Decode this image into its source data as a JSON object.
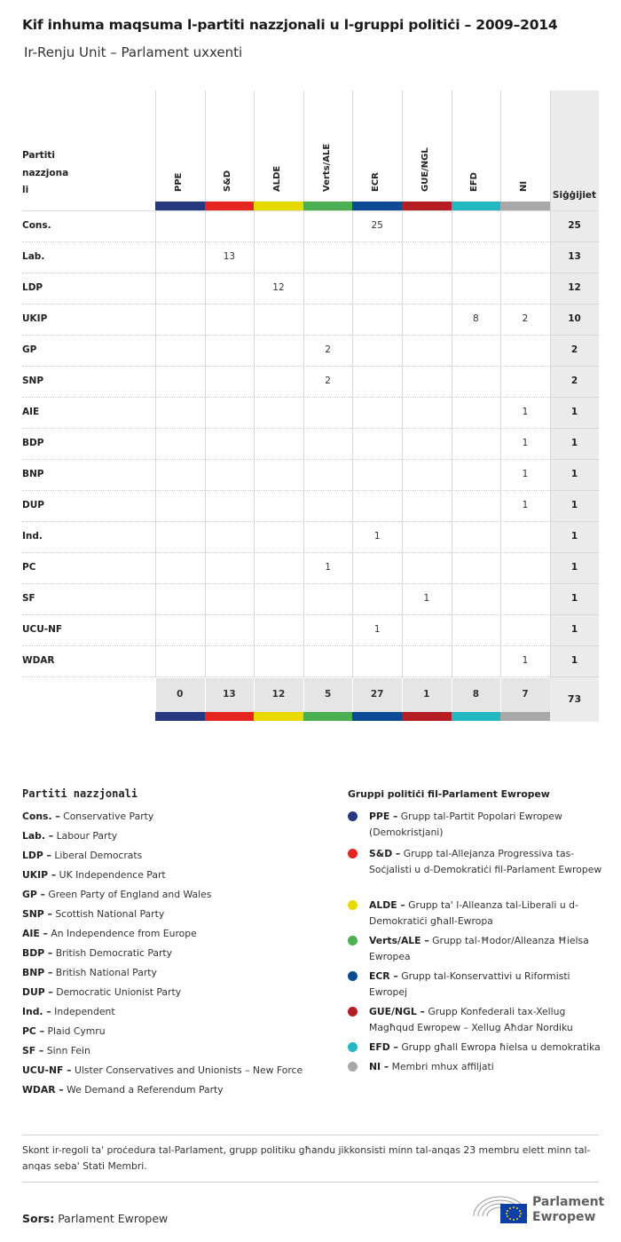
{
  "title": "Kif inhuma maqsuma l-partiti nazzjonali u l-gruppi politiċi – 2009–2014",
  "subtitle": "Ir-Renju Unit – Parlament uxxenti",
  "table": {
    "row_header": [
      "Partiti",
      "nazzjona",
      "li"
    ],
    "total_header": "Siġġijiet",
    "columns": [
      {
        "label": "PPE",
        "color": "#253880"
      },
      {
        "label": "S&D",
        "color": "#e52620"
      },
      {
        "label": "ALDE",
        "color": "#e8d900"
      },
      {
        "label": "Verts/ALE",
        "color": "#4caf50"
      },
      {
        "label": "ECR",
        "color": "#0c4a96"
      },
      {
        "label": "GUE/NGL",
        "color": "#b41e22"
      },
      {
        "label": "EFD",
        "color": "#23b7c4"
      },
      {
        "label": "NI",
        "color": "#a8a8a8"
      }
    ],
    "rows": [
      {
        "party": "Cons.",
        "values": [
          "",
          "",
          "",
          "",
          "25",
          "",
          "",
          ""
        ],
        "total": "25"
      },
      {
        "party": "Lab.",
        "values": [
          "",
          "13",
          "",
          "",
          "",
          "",
          "",
          ""
        ],
        "total": "13"
      },
      {
        "party": "LDP",
        "values": [
          "",
          "",
          "12",
          "",
          "",
          "",
          "",
          ""
        ],
        "total": "12"
      },
      {
        "party": "UKIP",
        "values": [
          "",
          "",
          "",
          "",
          "",
          "",
          "8",
          "2"
        ],
        "total": "10"
      },
      {
        "party": "GP",
        "values": [
          "",
          "",
          "",
          "2",
          "",
          "",
          "",
          ""
        ],
        "total": "2"
      },
      {
        "party": "SNP",
        "values": [
          "",
          "",
          "",
          "2",
          "",
          "",
          "",
          ""
        ],
        "total": "2"
      },
      {
        "party": "AIE",
        "values": [
          "",
          "",
          "",
          "",
          "",
          "",
          "",
          "1"
        ],
        "total": "1"
      },
      {
        "party": "BDP",
        "values": [
          "",
          "",
          "",
          "",
          "",
          "",
          "",
          "1"
        ],
        "total": "1"
      },
      {
        "party": "BNP",
        "values": [
          "",
          "",
          "",
          "",
          "",
          "",
          "",
          "1"
        ],
        "total": "1"
      },
      {
        "party": "DUP",
        "values": [
          "",
          "",
          "",
          "",
          "",
          "",
          "",
          "1"
        ],
        "total": "1"
      },
      {
        "party": "Ind.",
        "values": [
          "",
          "",
          "",
          "",
          "1",
          "",
          "",
          ""
        ],
        "total": "1"
      },
      {
        "party": "PC",
        "values": [
          "",
          "",
          "",
          "1",
          "",
          "",
          "",
          ""
        ],
        "total": "1"
      },
      {
        "party": "SF",
        "values": [
          "",
          "",
          "",
          "",
          "",
          "1",
          "",
          ""
        ],
        "total": "1"
      },
      {
        "party": "UCU-NF",
        "values": [
          "",
          "",
          "",
          "",
          "1",
          "",
          "",
          ""
        ],
        "total": "1"
      },
      {
        "party": "WDAR",
        "values": [
          "",
          "",
          "",
          "",
          "",
          "",
          "",
          "1"
        ],
        "total": "1"
      }
    ],
    "column_totals": [
      "0",
      "13",
      "12",
      "5",
      "27",
      "1",
      "8",
      "7"
    ],
    "grand_total": "73"
  },
  "legend": {
    "title": "Partiti nazzjonali",
    "items": [
      {
        "abbr": "Cons. –",
        "name": "Conservative Party"
      },
      {
        "abbr": "Lab. –",
        "name": "Labour Party"
      },
      {
        "abbr": "LDP –",
        "name": "Liberal Democrats"
      },
      {
        "abbr": "UKIP –",
        "name": "UK Independence Part"
      },
      {
        "abbr": "GP –",
        "name": "Green Party of England and Wales"
      },
      {
        "abbr": "SNP –",
        "name": "Scottish National Party"
      },
      {
        "abbr": "AIE –",
        "name": "An Independence from Europe"
      },
      {
        "abbr": "BDP –",
        "name": "British Democratic Party"
      },
      {
        "abbr": "BNP –",
        "name": "British National Party"
      },
      {
        "abbr": "DUP –",
        "name": "Democratic Unionist Party"
      },
      {
        "abbr": "Ind. –",
        "name": "Independent"
      },
      {
        "abbr": "PC –",
        "name": "Plaid Cymru"
      },
      {
        "abbr": "SF –",
        "name": "Sinn Fein"
      },
      {
        "abbr": "UCU-NF –",
        "name": "Ulster Conservatives and Unionists – New Force"
      },
      {
        "abbr": "WDAR –",
        "name": "We Demand a Referendum Party"
      }
    ]
  },
  "groups": {
    "title": "Gruppi politiċi fil-Parlament Ewropew",
    "items": [
      {
        "abbr": "PPE –",
        "name": "Grupp tal-Partit Popolari Ewropew (Demokristjani)",
        "color": "#253880"
      },
      {
        "abbr": "S&D –",
        "name": "Grupp tal-Allejanza Progressiva tas-Soċjalisti u d-Demokratiċi fil-Parlament Ewropew",
        "color": "#e52620"
      },
      {
        "abbr": "ALDE –",
        "name": "Grupp ta' l-Alleanza tal-Liberali u d-Demokratiċi għall-Ewropa",
        "color": "#e8d900"
      },
      {
        "abbr": "Verts/ALE –",
        "name": "Grupp tal-Ħodor/Alleanza Ħielsa Ewropea",
        "color": "#4caf50"
      },
      {
        "abbr": "ECR –",
        "name": "Grupp tal-Konservattivi u Riformisti Ewropej",
        "color": "#0c4a96"
      },
      {
        "abbr": "GUE/NGL –",
        "name": "Grupp Konfederali tax-Xellug Magħqud Ewropew – Xellug Aħdar Nordiku",
        "color": "#b41e22"
      },
      {
        "abbr": "EFD –",
        "name": "Grupp għall Ewropa ħielsa u demokratika",
        "color": "#23b7c4"
      },
      {
        "abbr": "NI –",
        "name": "Membri mhux affiljati",
        "color": "#a8a8a8"
      }
    ]
  },
  "note": "Skont ir-regoli ta' proċedura tal-Parlament, grupp politiku għandu jikkonsisti minn tal-anqas 23 membru elett minn tal-anqas seba' Stati Membri.",
  "source": {
    "label": "Sors:",
    "value": "Parlament Ewropew"
  },
  "logo": {
    "line1": "Parlament",
    "line2": "Ewropew"
  }
}
